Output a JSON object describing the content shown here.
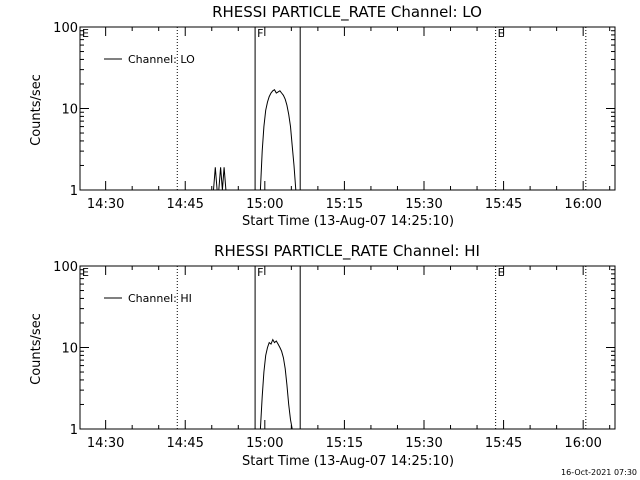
{
  "chart_data": [
    {
      "type": "line",
      "title": "RHESSI PARTICLE_RATE Channel: LO",
      "xlabel": "Start Time (13-Aug-07 14:25:10)",
      "ylabel": "Counts/sec",
      "xlim": [
        "14:25:10",
        "16:06:00"
      ],
      "ylim": [
        1,
        100
      ],
      "yscale": "log",
      "x_ticks": [
        "14:30",
        "14:45",
        "15:00",
        "15:15",
        "15:30",
        "15:45",
        "16:00"
      ],
      "y_ticks": [
        "1",
        "10",
        "100"
      ],
      "legend": {
        "position": "top-left",
        "entries": [
          "Channel: LO"
        ]
      },
      "grid": false,
      "series": [
        {
          "name": "Channel: LO",
          "x": [
            "14:50:20",
            "14:50:40",
            "14:51:00",
            "14:51:20",
            "14:51:40",
            "14:52:00",
            "14:52:20",
            "14:52:40",
            "14:59:10",
            "14:59:30",
            "14:59:50",
            "15:00:10",
            "15:00:30",
            "15:00:50",
            "15:01:10",
            "15:01:30",
            "15:01:50",
            "15:02:10",
            "15:02:30",
            "15:02:50",
            "15:03:10",
            "15:03:30",
            "15:03:50",
            "15:04:10",
            "15:04:30",
            "15:04:50",
            "15:05:10",
            "15:05:30",
            "15:05:50"
          ],
          "y": [
            1,
            1.9,
            1,
            1,
            1.9,
            1,
            1.9,
            1,
            1,
            3,
            6,
            9.5,
            12,
            14,
            15.5,
            16.5,
            17,
            15.5,
            16,
            16.5,
            15.5,
            14.5,
            13,
            11,
            8.5,
            6,
            3.5,
            2,
            1
          ]
        }
      ],
      "vertical_lines": [
        {
          "x": "14:43:30",
          "style": "dotted",
          "label": ""
        },
        {
          "x": "14:58:10",
          "style": "solid",
          "label": "F"
        },
        {
          "x": "15:06:40",
          "style": "solid",
          "label": ""
        },
        {
          "x": "15:43:30",
          "style": "dotted",
          "label": "E"
        },
        {
          "x": "16:00:30",
          "style": "dotted",
          "label": ""
        }
      ],
      "edge_labels": [
        {
          "x": "14:25:10",
          "label": "E"
        }
      ]
    },
    {
      "type": "line",
      "title": "RHESSI PARTICLE_RATE Channel: HI",
      "xlabel": "Start Time (13-Aug-07 14:25:10)",
      "ylabel": "Counts/sec",
      "xlim": [
        "14:25:10",
        "16:06:00"
      ],
      "ylim": [
        1,
        100
      ],
      "yscale": "log",
      "x_ticks": [
        "14:30",
        "14:45",
        "15:00",
        "15:15",
        "15:30",
        "15:45",
        "16:00"
      ],
      "y_ticks": [
        "1",
        "10",
        "100"
      ],
      "legend": {
        "position": "top-left",
        "entries": [
          "Channel: HI"
        ]
      },
      "grid": false,
      "series": [
        {
          "name": "Channel: HI",
          "x": [
            "14:59:10",
            "14:59:30",
            "14:59:50",
            "15:00:10",
            "15:00:30",
            "15:00:50",
            "15:01:10",
            "15:01:30",
            "15:01:50",
            "15:02:10",
            "15:02:30",
            "15:02:50",
            "15:03:10",
            "15:03:30",
            "15:03:50",
            "15:04:10",
            "15:04:30",
            "15:04:50",
            "15:05:10",
            "15:05:30"
          ],
          "y": [
            1,
            2.5,
            5,
            8,
            10,
            11.5,
            11,
            12.5,
            11.5,
            12,
            11,
            10,
            9,
            7.5,
            5.5,
            3.5,
            2,
            1.3,
            1,
            1
          ]
        }
      ],
      "vertical_lines": [
        {
          "x": "14:43:30",
          "style": "dotted",
          "label": ""
        },
        {
          "x": "14:58:10",
          "style": "solid",
          "label": "F"
        },
        {
          "x": "15:06:40",
          "style": "solid",
          "label": ""
        },
        {
          "x": "15:43:30",
          "style": "dotted",
          "label": "E"
        },
        {
          "x": "16:00:30",
          "style": "dotted",
          "label": ""
        }
      ],
      "edge_labels": [
        {
          "x": "14:25:10",
          "label": "E"
        }
      ]
    }
  ],
  "footer": {
    "timestamp": "16-Oct-2021 07:30"
  }
}
